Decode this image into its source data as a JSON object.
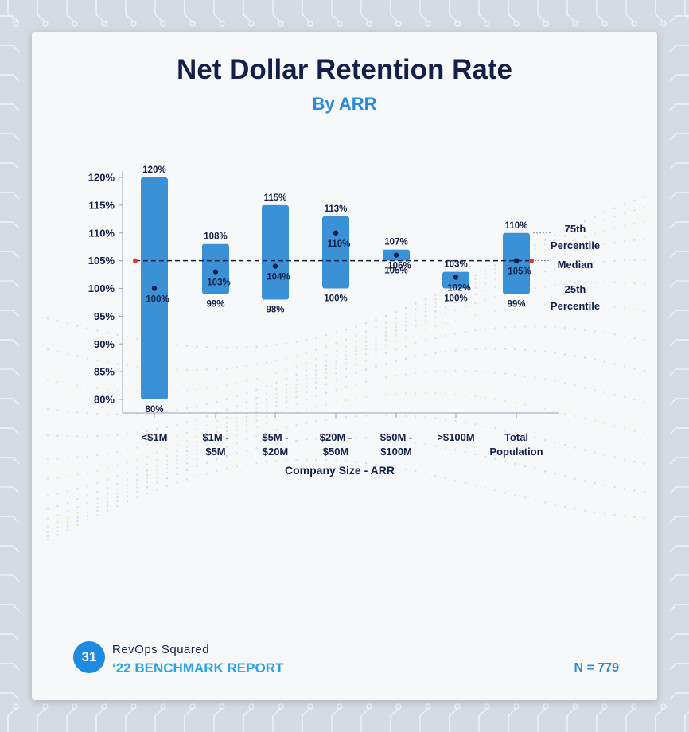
{
  "header": {
    "title": "Net Dollar Retention Rate",
    "subtitle": "By ARR"
  },
  "footer": {
    "page_number": "31",
    "brand": "RevOps Squared",
    "report": "‘22 BENCHMARK REPORT",
    "sample_size": "N = 779"
  },
  "colors": {
    "bar": "#3b91d6",
    "median_line": "#13204a",
    "median_marker": "#d93a3a",
    "axis_text": "#13204a"
  },
  "chart_data": {
    "type": "bar",
    "title": "Net Dollar Retention Rate",
    "subtitle": "By ARR",
    "xlabel": "Company Size - ARR",
    "ylabel": "",
    "ylim": [
      78,
      122
    ],
    "yticks": [
      80,
      85,
      90,
      95,
      100,
      105,
      110,
      115,
      120
    ],
    "ytick_labels": [
      "80%",
      "85%",
      "90%",
      "95%",
      "100%",
      "105%",
      "110%",
      "115%",
      "120%"
    ],
    "categories": [
      [
        "<$1M"
      ],
      [
        "$1M -",
        "$5M"
      ],
      [
        "$5M -",
        "$20M"
      ],
      [
        "$20M -",
        "$50M"
      ],
      [
        "$50M -",
        "$100M"
      ],
      [
        ">$100M"
      ],
      [
        "Total",
        "Population"
      ]
    ],
    "series": [
      {
        "name": "75th Percentile",
        "values": [
          120,
          108,
          115,
          113,
          107,
          103,
          110
        ]
      },
      {
        "name": "Median",
        "values": [
          100,
          103,
          104,
          110,
          106,
          102,
          105
        ]
      },
      {
        "name": "25th Percentile",
        "values": [
          80,
          99,
          98,
          100,
          105,
          100,
          99
        ]
      }
    ],
    "labels": {
      "p75": [
        "120%",
        "108%",
        "115%",
        "113%",
        "107%",
        "103%",
        "110%"
      ],
      "median": [
        "100%",
        "103%",
        "104%",
        "110%",
        "106%",
        "102%",
        "105%"
      ],
      "p25": [
        "80%",
        "99%",
        "98%",
        "100%",
        "105%",
        "100%",
        "99%"
      ]
    },
    "overall_median": 105,
    "legend_annotations": {
      "p75": [
        "75th",
        "Percentile"
      ],
      "median": [
        "Median"
      ],
      "p25": [
        "25th",
        "Percentile"
      ]
    },
    "grid": false
  }
}
